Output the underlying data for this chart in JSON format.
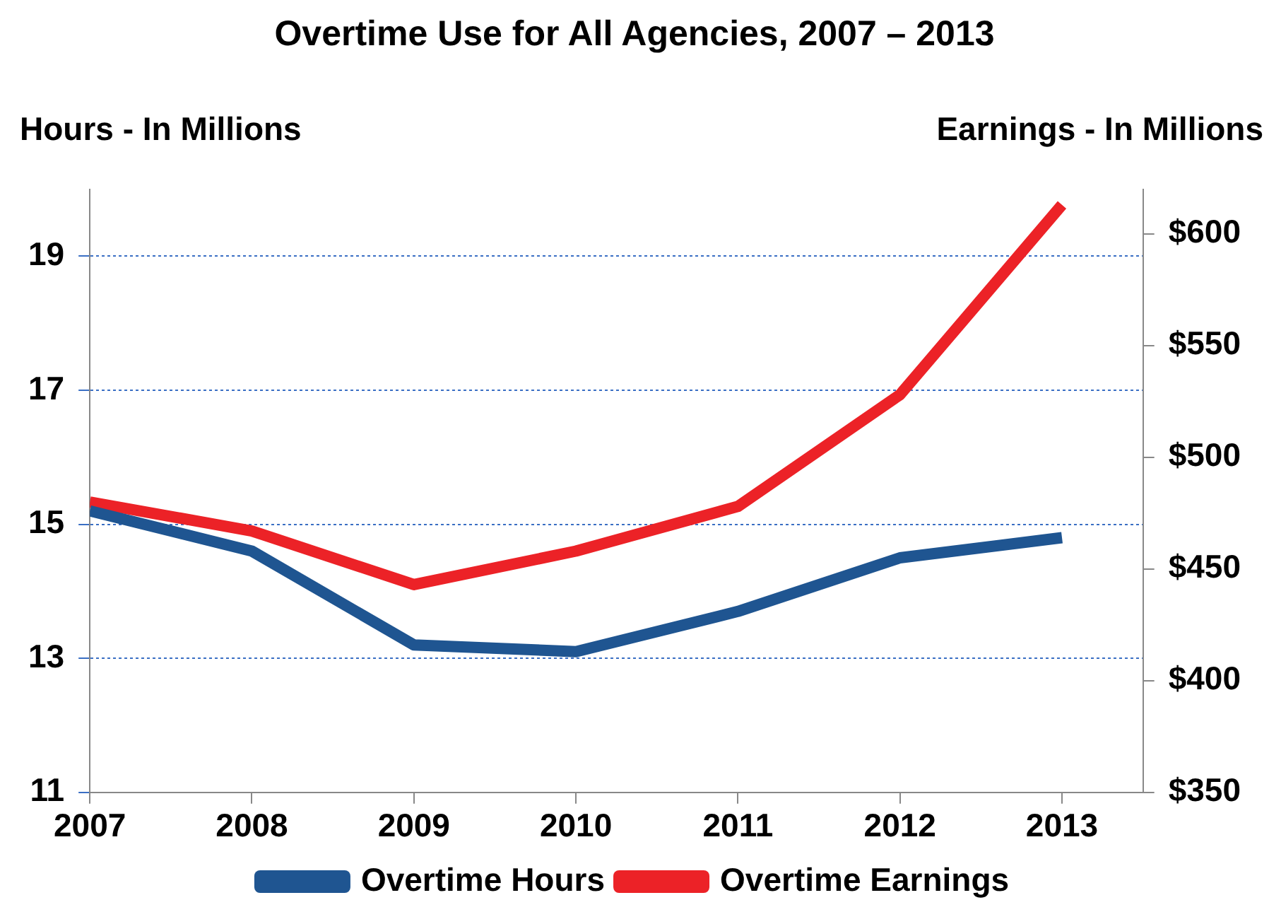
{
  "chart_data": {
    "type": "line",
    "title": "Overtime Use for All Agencies, 2007 – 2013",
    "ylabel": "Hours - In Millions",
    "y2label": "Earnings - In Millions",
    "x": [
      2007,
      2008,
      2009,
      2010,
      2011,
      2012,
      2013
    ],
    "series": [
      {
        "name": "Overtime Hours",
        "color": "#1f5591",
        "values": [
          15.2,
          14.6,
          13.2,
          13.1,
          13.7,
          14.5,
          14.8
        ]
      },
      {
        "name": "Overtime Earnings",
        "color": "#ec2227",
        "axis": "y2",
        "values": [
          480,
          467,
          443,
          458,
          478,
          528,
          613
        ]
      }
    ],
    "xlim": [
      2007,
      2013.5
    ],
    "xticks": [
      2007,
      2008,
      2009,
      2010,
      2011,
      2012,
      2013
    ],
    "ylim": [
      11,
      20
    ],
    "yticks": [
      11,
      13,
      15,
      17,
      19
    ],
    "y2lim": [
      350,
      620
    ],
    "y2ticks": [
      {
        "value": 350,
        "label": "$350"
      },
      {
        "value": 400,
        "label": "$400"
      },
      {
        "value": 450,
        "label": "$450"
      },
      {
        "value": 500,
        "label": "$500"
      },
      {
        "value": 550,
        "label": "$550"
      },
      {
        "value": 600,
        "label": "$600"
      }
    ],
    "grid": "y",
    "legend": "bottom",
    "marker": "none",
    "line_style": "solid"
  }
}
